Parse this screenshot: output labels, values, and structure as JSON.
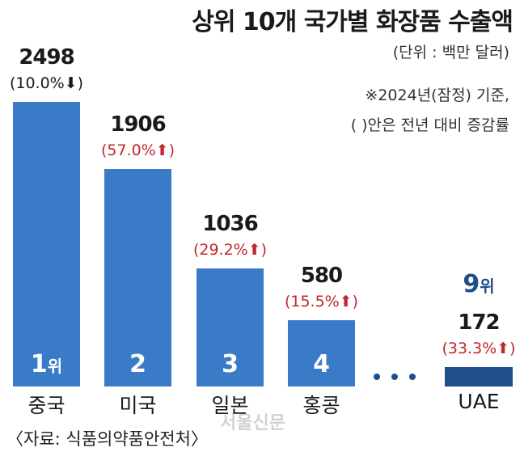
{
  "chart_data": {
    "type": "bar",
    "title": "상위 10개 국가별 화장품 수출액",
    "unit_note": "(단위 : 백만 달러)",
    "notes": [
      "※2024년(잠정) 기준,",
      "(   )안은 전년 대비 증감률"
    ],
    "categories": [
      "중국",
      "미국",
      "일본",
      "홍콩",
      "UAE"
    ],
    "values": [
      2498,
      1906,
      1036,
      580,
      172
    ],
    "changes": [
      "(10.0%⬇)",
      "(57.0%⬆)",
      "(29.2%⬆)",
      "(15.5%⬆)",
      "(33.3%⬆)"
    ],
    "change_direction": [
      "down",
      "up",
      "up",
      "up",
      "up"
    ],
    "ranks": [
      "1",
      "2",
      "3",
      "4",
      "9"
    ],
    "rank_suffix": "위",
    "ylim": [
      0,
      2498
    ],
    "colors": {
      "bar": "#3a7bc8",
      "bar_highlight": "#1f4e8c",
      "up": "#c0272d"
    },
    "source": "〈자료: 식품의약품안전처〉",
    "watermark": "서울신문"
  }
}
